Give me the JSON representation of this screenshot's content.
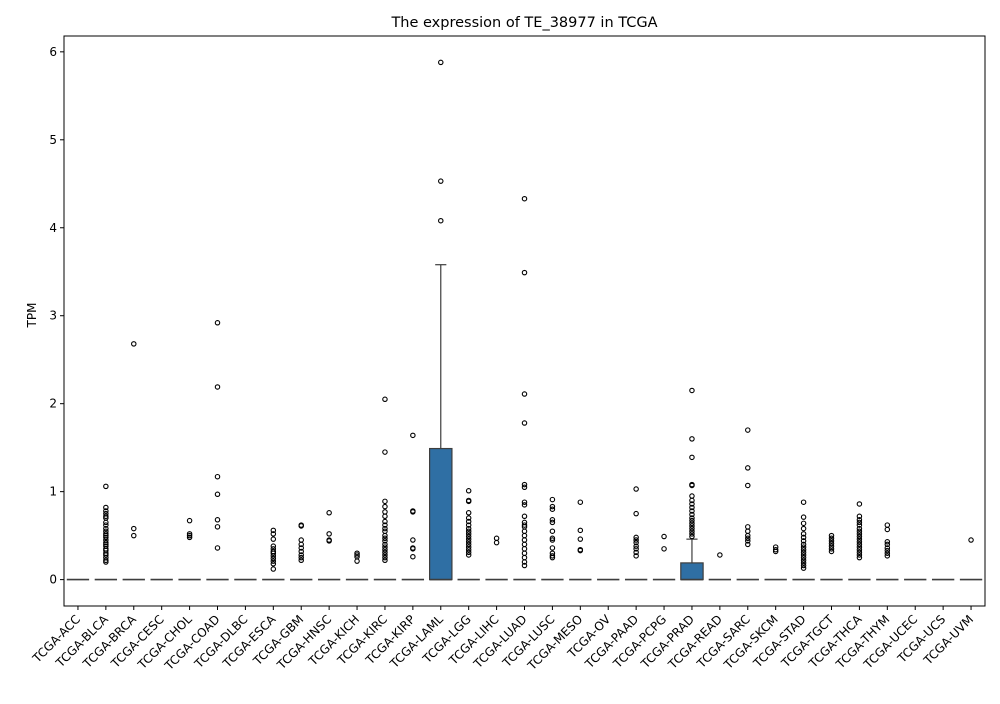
{
  "chart_data": {
    "type": "box",
    "title": "The expression of TE_38977 in TCGA",
    "xlabel": "",
    "ylabel": "TPM",
    "ylim": [
      -0.3,
      6.18
    ],
    "yticks": [
      0,
      1,
      2,
      3,
      4,
      5,
      6
    ],
    "grid": false,
    "legend": "none",
    "box_color": "#2f6fa4",
    "categories": [
      "TCGA-ACC",
      "TCGA-BLCA",
      "TCGA-BRCA",
      "TCGA-CESC",
      "TCGA-CHOL",
      "TCGA-COAD",
      "TCGA-DLBC",
      "TCGA-ESCA",
      "TCGA-GBM",
      "TCGA-HNSC",
      "TCGA-KICH",
      "TCGA-KIRC",
      "TCGA-KIRP",
      "TCGA-LAML",
      "TCGA-LGG",
      "TCGA-LIHC",
      "TCGA-LUAD",
      "TCGA-LUSC",
      "TCGA-MESO",
      "TCGA-OV",
      "TCGA-PAAD",
      "TCGA-PCPG",
      "TCGA-PRAD",
      "TCGA-READ",
      "TCGA-SARC",
      "TCGA-SKCM",
      "TCGA-STAD",
      "TCGA-TGCT",
      "TCGA-THCA",
      "TCGA-THYM",
      "TCGA-UCEC",
      "TCGA-UCS",
      "TCGA-UVM"
    ],
    "boxes": [
      {
        "q1": 0,
        "median": 0,
        "q3": 0,
        "whislo": 0,
        "whishi": 0,
        "fliers": []
      },
      {
        "q1": 0,
        "median": 0,
        "q3": 0,
        "whislo": 0,
        "whishi": 0,
        "fliers": [
          1.06,
          0.82,
          0.78,
          0.75,
          0.72,
          0.7,
          0.65,
          0.62,
          0.58,
          0.55,
          0.52,
          0.5,
          0.48,
          0.45,
          0.42,
          0.4,
          0.38,
          0.35,
          0.33,
          0.3,
          0.28,
          0.25,
          0.22,
          0.2
        ]
      },
      {
        "q1": 0,
        "median": 0,
        "q3": 0,
        "whislo": 0,
        "whishi": 0,
        "fliers": [
          2.68,
          0.58,
          0.5
        ]
      },
      {
        "q1": 0,
        "median": 0,
        "q3": 0,
        "whislo": 0,
        "whishi": 0,
        "fliers": []
      },
      {
        "q1": 0,
        "median": 0,
        "q3": 0,
        "whislo": 0,
        "whishi": 0,
        "fliers": [
          0.67,
          0.52,
          0.5,
          0.48
        ]
      },
      {
        "q1": 0,
        "median": 0,
        "q3": 0,
        "whislo": 0,
        "whishi": 0,
        "fliers": [
          2.92,
          2.19,
          1.17,
          0.97,
          0.68,
          0.6,
          0.36
        ]
      },
      {
        "q1": 0,
        "median": 0,
        "q3": 0,
        "whislo": 0,
        "whishi": 0,
        "fliers": []
      },
      {
        "q1": 0,
        "median": 0,
        "q3": 0,
        "whislo": 0,
        "whishi": 0,
        "fliers": [
          0.56,
          0.52,
          0.46,
          0.38,
          0.35,
          0.32,
          0.3,
          0.27,
          0.24,
          0.21,
          0.18,
          0.12
        ]
      },
      {
        "q1": 0,
        "median": 0,
        "q3": 0,
        "whislo": 0,
        "whishi": 0,
        "fliers": [
          0.62,
          0.61,
          0.45,
          0.4,
          0.36,
          0.32,
          0.28,
          0.25,
          0.22
        ]
      },
      {
        "q1": 0,
        "median": 0,
        "q3": 0,
        "whislo": 0,
        "whishi": 0,
        "fliers": [
          0.76,
          0.52,
          0.45,
          0.44
        ]
      },
      {
        "q1": 0,
        "median": 0,
        "q3": 0,
        "whislo": 0,
        "whishi": 0,
        "fliers": [
          0.3,
          0.28,
          0.26,
          0.21
        ]
      },
      {
        "q1": 0,
        "median": 0,
        "q3": 0,
        "whislo": 0,
        "whishi": 0,
        "fliers": [
          2.05,
          1.45,
          0.89,
          0.83,
          0.77,
          0.72,
          0.66,
          0.62,
          0.58,
          0.55,
          0.5,
          0.47,
          0.44,
          0.4,
          0.37,
          0.34,
          0.31,
          0.28,
          0.25,
          0.22
        ]
      },
      {
        "q1": 0,
        "median": 0,
        "q3": 0,
        "whislo": 0,
        "whishi": 0,
        "fliers": [
          1.64,
          0.78,
          0.77,
          0.45,
          0.36,
          0.35,
          0.26
        ]
      },
      {
        "q1": 0,
        "median": 0,
        "q3": 1.49,
        "whislo": 0,
        "whishi": 3.58,
        "fliers": [
          5.88,
          4.53,
          4.08
        ]
      },
      {
        "q1": 0,
        "median": 0,
        "q3": 0,
        "whislo": 0,
        "whishi": 0,
        "fliers": [
          1.01,
          0.9,
          0.89,
          0.76,
          0.7,
          0.66,
          0.62,
          0.58,
          0.55,
          0.52,
          0.49,
          0.46,
          0.43,
          0.4,
          0.37,
          0.34,
          0.31,
          0.28
        ]
      },
      {
        "q1": 0,
        "median": 0,
        "q3": 0,
        "whislo": 0,
        "whishi": 0,
        "fliers": [
          0.47,
          0.42
        ]
      },
      {
        "q1": 0,
        "median": 0,
        "q3": 0,
        "whislo": 0,
        "whishi": 0,
        "fliers": [
          4.33,
          3.49,
          2.11,
          1.78,
          1.08,
          1.05,
          0.88,
          0.85,
          0.72,
          0.65,
          0.62,
          0.6,
          0.55,
          0.5,
          0.45,
          0.4,
          0.35,
          0.3,
          0.25,
          0.2,
          0.16
        ]
      },
      {
        "q1": 0,
        "median": 0,
        "q3": 0,
        "whislo": 0,
        "whishi": 0,
        "fliers": [
          0.91,
          0.83,
          0.8,
          0.68,
          0.65,
          0.55,
          0.47,
          0.45,
          0.36,
          0.3,
          0.27,
          0.25
        ]
      },
      {
        "q1": 0,
        "median": 0,
        "q3": 0,
        "whislo": 0,
        "whishi": 0,
        "fliers": [
          0.88,
          0.56,
          0.46,
          0.34,
          0.33
        ]
      },
      {
        "q1": 0,
        "median": 0,
        "q3": 0,
        "whislo": 0,
        "whishi": 0,
        "fliers": []
      },
      {
        "q1": 0,
        "median": 0,
        "q3": 0,
        "whislo": 0,
        "whishi": 0,
        "fliers": [
          1.03,
          0.75,
          0.48,
          0.45,
          0.42,
          0.38,
          0.35,
          0.31,
          0.27
        ]
      },
      {
        "q1": 0,
        "median": 0,
        "q3": 0,
        "whislo": 0,
        "whishi": 0,
        "fliers": [
          0.49,
          0.35
        ]
      },
      {
        "q1": 0,
        "median": 0,
        "q3": 0.19,
        "whislo": 0,
        "whishi": 0.46,
        "fliers": [
          2.15,
          1.6,
          1.39,
          1.08,
          1.07,
          0.95,
          0.9,
          0.86,
          0.82,
          0.78,
          0.74,
          0.7,
          0.67,
          0.64,
          0.61,
          0.58,
          0.55,
          0.52,
          0.49
        ]
      },
      {
        "q1": 0,
        "median": 0,
        "q3": 0,
        "whislo": 0,
        "whishi": 0,
        "fliers": [
          0.28
        ]
      },
      {
        "q1": 0,
        "median": 0,
        "q3": 0,
        "whislo": 0,
        "whishi": 0,
        "fliers": [
          1.7,
          1.27,
          1.07,
          0.6,
          0.55,
          0.5,
          0.47,
          0.44,
          0.4
        ]
      },
      {
        "q1": 0,
        "median": 0,
        "q3": 0,
        "whislo": 0,
        "whishi": 0,
        "fliers": [
          0.37,
          0.34,
          0.32
        ]
      },
      {
        "q1": 0,
        "median": 0,
        "q3": 0,
        "whislo": 0,
        "whishi": 0,
        "fliers": [
          0.88,
          0.71,
          0.64,
          0.58,
          0.52,
          0.48,
          0.44,
          0.4,
          0.37,
          0.34,
          0.31,
          0.28,
          0.25,
          0.22,
          0.19,
          0.16,
          0.13
        ]
      },
      {
        "q1": 0,
        "median": 0,
        "q3": 0,
        "whislo": 0,
        "whishi": 0,
        "fliers": [
          0.5,
          0.47,
          0.44,
          0.41,
          0.38,
          0.35,
          0.32
        ]
      },
      {
        "q1": 0,
        "median": 0,
        "q3": 0,
        "whislo": 0,
        "whishi": 0,
        "fliers": [
          0.86,
          0.72,
          0.68,
          0.65,
          0.62,
          0.58,
          0.55,
          0.52,
          0.49,
          0.46,
          0.43,
          0.4,
          0.37,
          0.34,
          0.31,
          0.28,
          0.25
        ]
      },
      {
        "q1": 0,
        "median": 0,
        "q3": 0,
        "whislo": 0,
        "whishi": 0,
        "fliers": [
          0.62,
          0.57,
          0.43,
          0.4,
          0.36,
          0.33,
          0.3,
          0.27
        ]
      },
      {
        "q1": 0,
        "median": 0,
        "q3": 0,
        "whislo": 0,
        "whishi": 0,
        "fliers": []
      },
      {
        "q1": 0,
        "median": 0,
        "q3": 0,
        "whislo": 0,
        "whishi": 0,
        "fliers": []
      },
      {
        "q1": 0,
        "median": 0,
        "q3": 0,
        "whislo": 0,
        "whishi": 0,
        "fliers": [
          0.45
        ]
      }
    ]
  }
}
